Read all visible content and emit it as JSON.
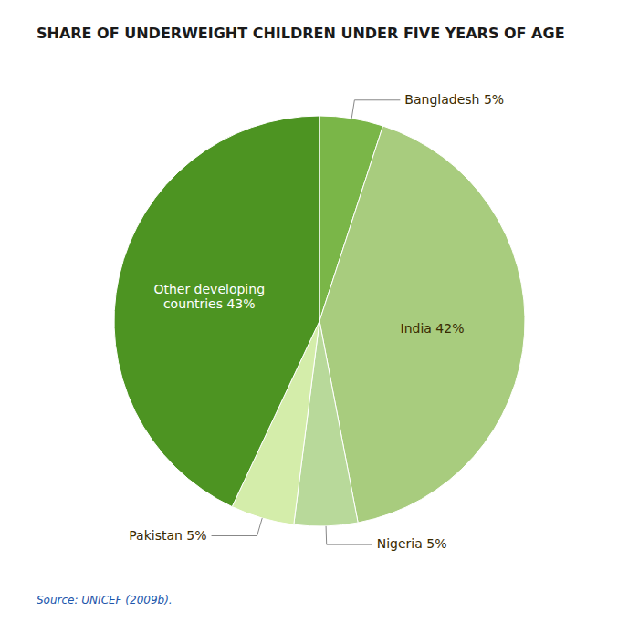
{
  "chart_data": {
    "type": "pie",
    "title": "SHARE OF UNDERWEIGHT CHILDREN UNDER FIVE YEARS OF AGE",
    "source": "Source: UNICEF (2009b).",
    "categories": [
      "Bangladesh 5%",
      "India 42%",
      "Nigeria 5%",
      "Pakistan 5%",
      "Other developing\ncountries 43%"
    ],
    "values": [
      5,
      42,
      5,
      5,
      43
    ],
    "colors": [
      "#7ab648",
      "#a8cc7e",
      "#b8d99a",
      "#d4edaa",
      "#4d9422"
    ]
  }
}
